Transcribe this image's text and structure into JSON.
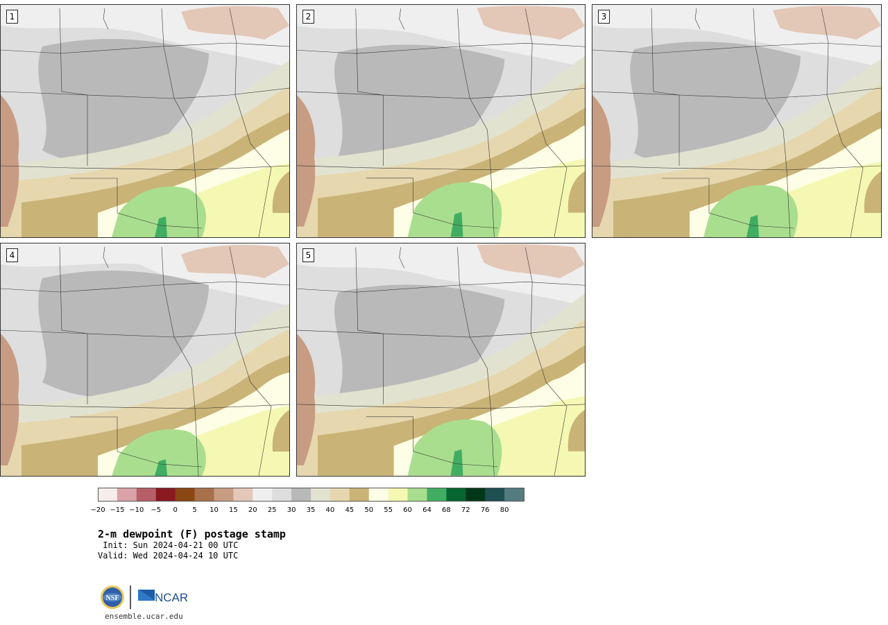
{
  "panels": [
    {
      "label": "1"
    },
    {
      "label": "2"
    },
    {
      "label": "3"
    },
    {
      "label": "4"
    },
    {
      "label": "5"
    }
  ],
  "colorbar": {
    "colors": [
      "#f6ecec",
      "#d9a3a8",
      "#b65f66",
      "#8a1a22",
      "#8a4713",
      "#a8714b",
      "#c79c82",
      "#e3c7b7",
      "#efefef",
      "#dedede",
      "#b9b9b9",
      "#e2e2d0",
      "#e6d7ae",
      "#c9b376",
      "#fefee6",
      "#f5f8b2",
      "#a9de8f",
      "#40ad62",
      "#066631",
      "#003719",
      "#1e4f51",
      "#547b80"
    ],
    "ticks": [
      "−20",
      "−15",
      "−10",
      "−5",
      "0",
      "5",
      "10",
      "15",
      "20",
      "25",
      "30",
      "35",
      "40",
      "45",
      "50",
      "55",
      "60",
      "64",
      "68",
      "72",
      "76",
      "80"
    ]
  },
  "title": "2-m dewpoint (F) postage stamp",
  "init_line": " Init: Sun 2024-04-21 00 UTC",
  "valid_line": "Valid: Wed 2024-04-24 10 UTC",
  "logo": {
    "nsf_text": "NSF",
    "ncar_text": "NCAR"
  },
  "url": "ensemble.ucar.edu"
}
